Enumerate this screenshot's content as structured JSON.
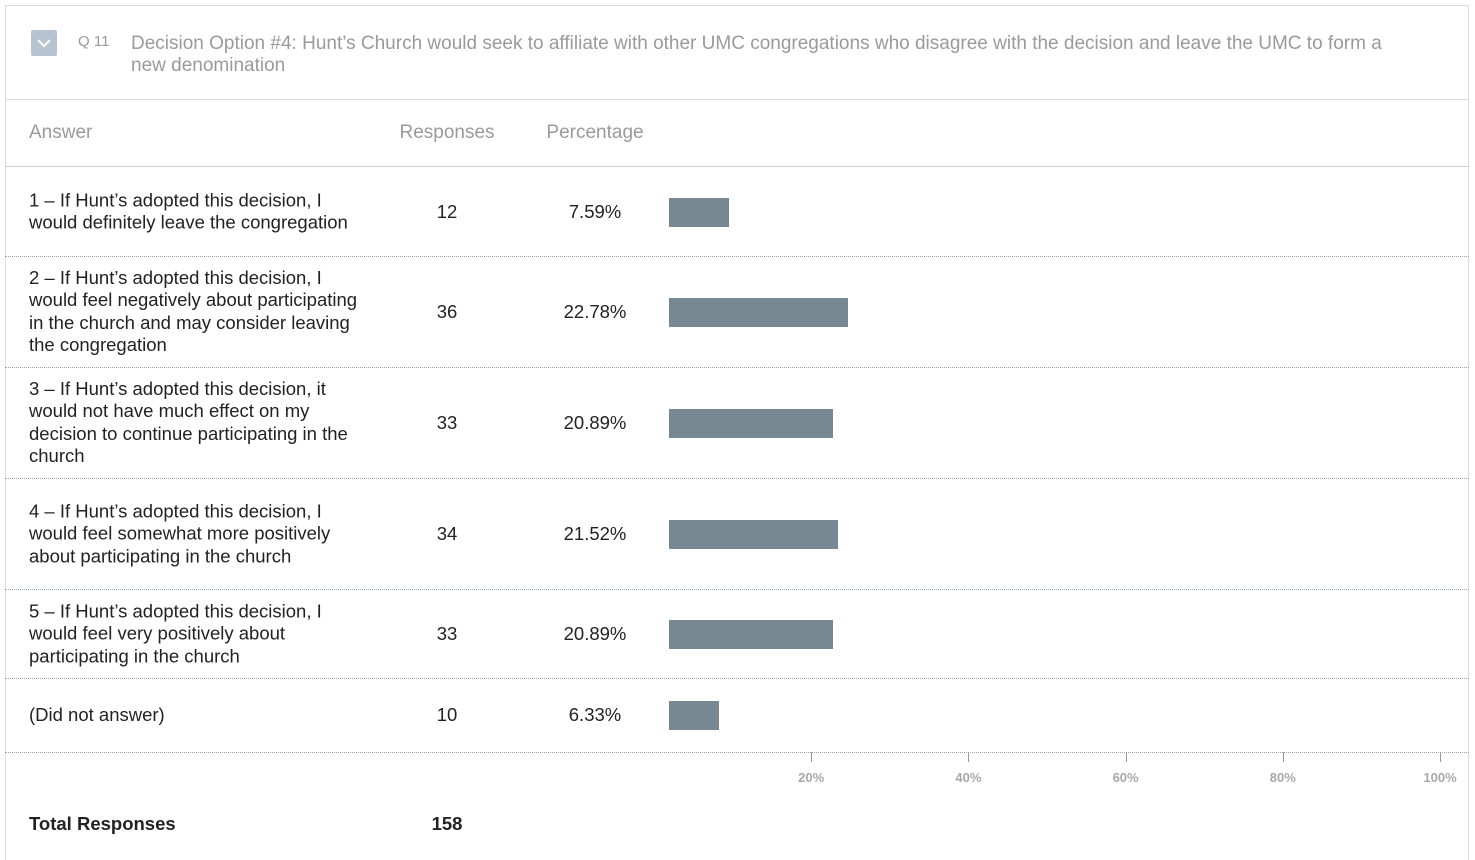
{
  "question": {
    "number": "Q 11",
    "text": "Decision Option #4: Hunt’s Church would seek to affiliate with other UMC congregations who disagree with the decision and leave the UMC to form a new denomination"
  },
  "table": {
    "headers": [
      "Answer",
      "Responses",
      "Percentage"
    ],
    "rows": [
      {
        "answer": "1 – If Hunt’s adopted this decision, I would definitely leave the congregation",
        "responses": 12,
        "percentage": 7.59,
        "percentage_label": "7.59%"
      },
      {
        "answer": "2 – If Hunt’s adopted this decision, I would feel negatively about participating in the church and may consider leaving the congregation",
        "responses": 36,
        "percentage": 22.78,
        "percentage_label": "22.78%"
      },
      {
        "answer": "3 – If Hunt’s adopted this decision, it would not have much effect on my decision to continue participating in the church",
        "responses": 33,
        "percentage": 20.89,
        "percentage_label": "20.89%"
      },
      {
        "answer": "4 – If Hunt’s adopted this decision, I would feel somewhat more positively about participating in the church",
        "responses": 34,
        "percentage": 21.52,
        "percentage_label": "21.52%"
      },
      {
        "answer": "5 – If Hunt’s adopted this decision, I would feel very positively about participating in the church",
        "responses": 33,
        "percentage": 20.89,
        "percentage_label": "20.89%"
      },
      {
        "answer": "(Did not answer)",
        "responses": 10,
        "percentage": 6.33,
        "percentage_label": "6.33%"
      }
    ],
    "bar_color": "#778893",
    "xlim": [
      0,
      100
    ],
    "xticks": [
      {
        "value": 20,
        "label": "20%"
      },
      {
        "value": 40,
        "label": "40%"
      },
      {
        "value": 60,
        "label": "60%"
      },
      {
        "value": 80,
        "label": "80%"
      },
      {
        "value": 100,
        "label": "100%"
      }
    ],
    "total_label": "Total Responses",
    "total": 158
  }
}
